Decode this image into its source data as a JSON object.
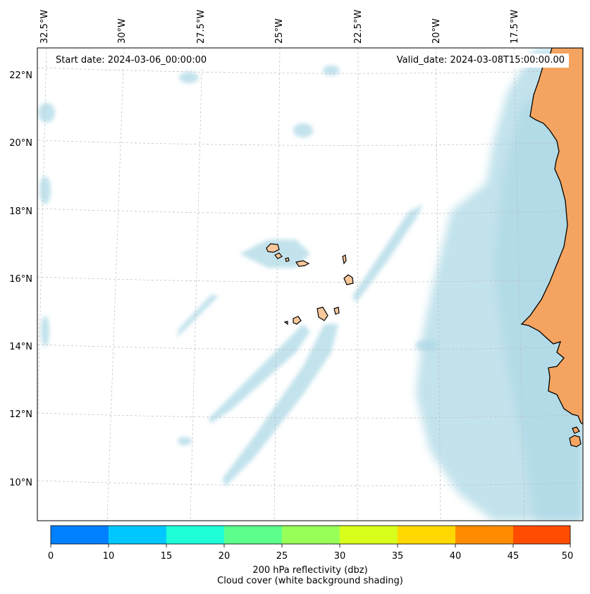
{
  "map": {
    "start_date": "Start date: 2024-03-06_00:00:00",
    "valid_date": "Valid_date: 2024-03-08T15:00:00.00",
    "lon_labels": [
      "32.5°W",
      "30°W",
      "27.5°W",
      "25°W",
      "22.5°W",
      "20°W",
      "17.5°W"
    ],
    "lat_labels": [
      "22°N",
      "20°N",
      "18°N",
      "16°N",
      "14°N",
      "12°N",
      "10°N"
    ],
    "colors": {
      "land": "#f4a460",
      "cloud": "#add8e6",
      "coast": "#000000",
      "gridline": "#bbbbbb"
    }
  },
  "colorbar": {
    "ticks": [
      "0",
      "10",
      "15",
      "20",
      "25",
      "30",
      "35",
      "40",
      "45",
      "50"
    ],
    "colors": [
      "#0080ff",
      "#00c8ff",
      "#1effd8",
      "#5cff8c",
      "#98ff58",
      "#d8ff1c",
      "#ffd800",
      "#ff8c00",
      "#ff4c00"
    ],
    "label": "200 hPa reflectivity (dbz)",
    "sublabel": "Cloud cover (white background shading)"
  }
}
